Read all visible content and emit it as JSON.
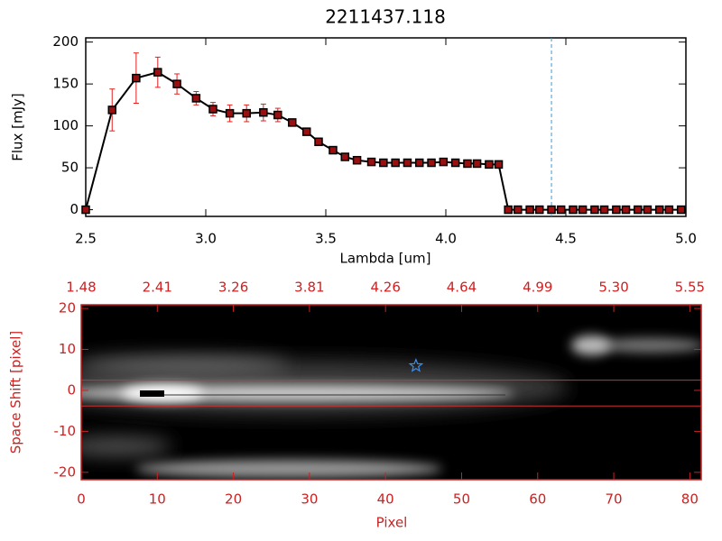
{
  "chart_data": [
    {
      "type": "line",
      "title": "2211437.118",
      "x_label": "Lambda [um]",
      "y_label": "Flux [mJy]",
      "x": [
        2.5,
        2.61,
        2.71,
        2.8,
        2.88,
        2.96,
        3.03,
        3.1,
        3.17,
        3.24,
        3.3,
        3.36,
        3.42,
        3.47,
        3.53,
        3.58,
        3.63,
        3.69,
        3.74,
        3.79,
        3.84,
        3.89,
        3.94,
        3.99,
        4.04,
        4.09,
        4.13,
        4.18,
        4.22,
        4.26,
        4.3,
        4.35,
        4.39,
        4.44,
        4.48,
        4.53,
        4.57,
        4.62,
        4.66,
        4.71,
        4.75,
        4.8,
        4.84,
        4.89,
        4.93,
        4.98
      ],
      "values": [
        0,
        119,
        157,
        164,
        150,
        133,
        120,
        115,
        115,
        116,
        113,
        104,
        93,
        81,
        71,
        63,
        59,
        57,
        56,
        56,
        56,
        56,
        56,
        57,
        56,
        55,
        55,
        54,
        54,
        0,
        0,
        0,
        0,
        0,
        0,
        0,
        0,
        0,
        0,
        0,
        0,
        0,
        0,
        0,
        0,
        0
      ],
      "errors": [
        0,
        25,
        30,
        18,
        12,
        8,
        8,
        10,
        10,
        10,
        8,
        3,
        3,
        2,
        2,
        2,
        2,
        2,
        2,
        2,
        2,
        2,
        2,
        2,
        2,
        2,
        2,
        2,
        2,
        0,
        0,
        0,
        0,
        0,
        0,
        0,
        0,
        0,
        0,
        0,
        0,
        0,
        0,
        0,
        0,
        0
      ],
      "color": "#000000",
      "marker_color": "#9a1010",
      "error_color": "#e02020",
      "vline_x": 4.44,
      "vline_color": "#3a9ad9",
      "xlim": [
        2.5,
        5.0
      ],
      "ylim": [
        -8,
        205
      ],
      "xticks": [
        2.5,
        {
          "value": 3,
          "label": "3.0"
        },
        3.5,
        {
          "value": 4,
          "label": "4.0"
        },
        4.5,
        {
          "value": 5,
          "label": "5.0"
        }
      ],
      "yticks": [
        0,
        50,
        100,
        150,
        200
      ]
    },
    {
      "type": "image",
      "x_label": "Pixel",
      "y_label": "Space Shift [pixel]",
      "xlim": [
        0,
        81.5
      ],
      "ylim": [
        -21.8,
        20.9
      ],
      "xticks": [
        0,
        10,
        20,
        30,
        40,
        50,
        60,
        70,
        80
      ],
      "x2ticks": [
        {
          "value": 0,
          "label": "1.48"
        },
        {
          "value": 10,
          "label": "2.41"
        },
        {
          "value": 20,
          "label": "3.26"
        },
        {
          "value": 30,
          "label": "3.81"
        },
        {
          "value": 40,
          "label": "4.26"
        },
        {
          "value": 50,
          "label": "4.64"
        },
        {
          "value": 60,
          "label": "4.99"
        },
        {
          "value": 70,
          "label": "5.30"
        },
        {
          "value": 80,
          "label": "5.55"
        }
      ],
      "yticks": [
        -20,
        -10,
        0,
        10,
        20
      ],
      "hlines": [
        2.5,
        -3.8
      ],
      "hline_color": "#d03030",
      "star": {
        "x": 44,
        "y": 6,
        "color": "#3a8ef0"
      },
      "axis_color": "#cc2222"
    }
  ]
}
